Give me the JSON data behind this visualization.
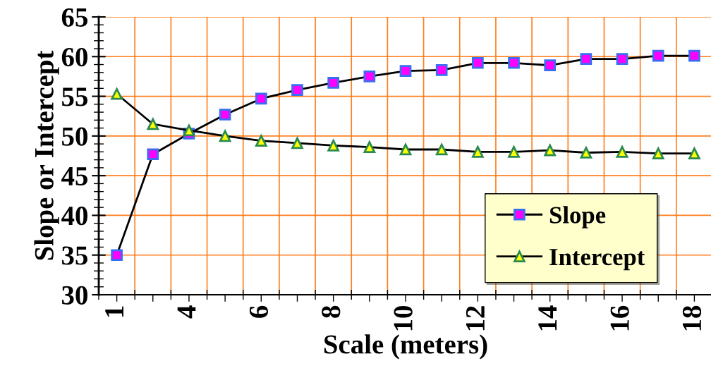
{
  "chart_data": {
    "type": "line",
    "xlabel": "Scale (meters)",
    "ylabel": "Slope or Intercept",
    "categories": [
      "1",
      null,
      "4",
      null,
      "6",
      null,
      "8",
      null,
      "10",
      null,
      "12",
      null,
      "14",
      null,
      "16",
      null,
      "18"
    ],
    "series": [
      {
        "name": "Slope",
        "color": "#ff00ff",
        "marker": "square",
        "values": [
          35.0,
          47.7,
          50.3,
          52.7,
          54.7,
          55.8,
          56.7,
          57.5,
          58.2,
          58.3,
          59.2,
          59.2,
          58.9,
          59.7,
          59.7,
          60.1,
          60.1
        ]
      },
      {
        "name": "Intercept",
        "color": "#ffff00",
        "marker": "triangle",
        "values": [
          55.3,
          51.5,
          50.7,
          50.0,
          49.4,
          49.1,
          48.8,
          48.6,
          48.3,
          48.3,
          48.0,
          48.0,
          48.2,
          47.9,
          48.0,
          47.8,
          47.8
        ]
      }
    ],
    "ylim": [
      30,
      65
    ],
    "yticks": [
      30,
      35,
      40,
      45,
      50,
      55,
      60,
      65
    ],
    "grid": true,
    "legend": "bottom right",
    "line_style": "solid"
  }
}
